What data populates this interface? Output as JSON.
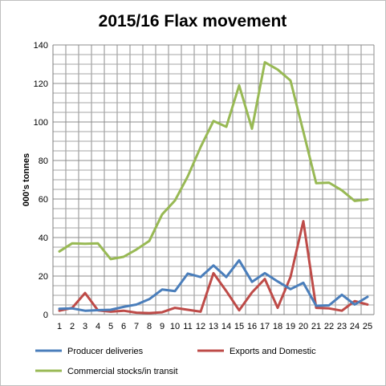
{
  "chart_data": {
    "type": "line",
    "title": "2015/16 Flax movement",
    "xlabel": "",
    "ylabel": "000's tonnes",
    "x": [
      1,
      2,
      3,
      4,
      5,
      6,
      7,
      8,
      9,
      10,
      11,
      12,
      13,
      14,
      15,
      16,
      17,
      18,
      19,
      20,
      21,
      22,
      23,
      24,
      25
    ],
    "ylim": [
      0,
      140
    ],
    "yticks": [
      0,
      20,
      40,
      60,
      80,
      100,
      120,
      140
    ],
    "grid": true,
    "legend_position": "bottom",
    "series": [
      {
        "name": "Producer deliveries",
        "color": "#4a7ebb",
        "values": [
          3,
          3.2,
          2,
          2.3,
          2.5,
          4,
          5.2,
          8,
          13,
          12.2,
          21.3,
          19.5,
          25.5,
          19.5,
          28.2,
          17,
          21.5,
          17.2,
          13.2,
          16.5,
          4.6,
          4.8,
          10.3,
          5.2,
          9.2
        ]
      },
      {
        "name": "Exports and Domestic",
        "color": "#be4b48",
        "values": [
          2,
          3.5,
          11.2,
          2.2,
          1.5,
          2,
          1,
          0.8,
          1.2,
          3.5,
          2.5,
          1.5,
          21.5,
          12.2,
          2.2,
          11.5,
          18.5,
          3.5,
          19.5,
          48.5,
          3.5,
          3.2,
          2,
          7,
          5.2
        ]
      },
      {
        "name": "Commercial stocks/in transit",
        "color": "#98b954",
        "values": [
          32.8,
          37,
          36.8,
          37,
          28.8,
          30,
          33.8,
          38.2,
          52,
          59.2,
          71.8,
          87,
          100.5,
          97.5,
          119,
          96.5,
          131,
          127.2,
          121.5,
          95,
          68.2,
          68.5,
          64.5,
          59,
          59.8
        ]
      }
    ]
  }
}
